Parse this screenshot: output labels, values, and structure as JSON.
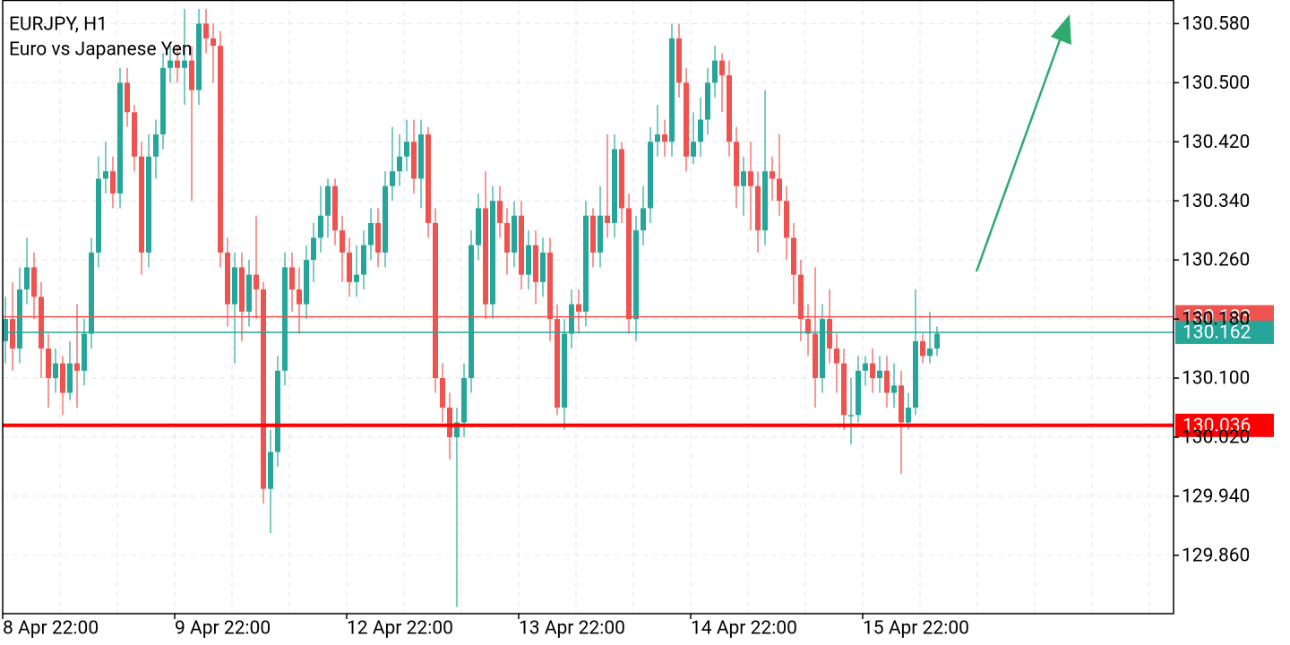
{
  "chart_data": {
    "type": "candlestick",
    "title": "EURJPY, H1",
    "subtitle": "Euro vs Japanese Yen",
    "up_color": "#26a69a",
    "down_color": "#ef5350",
    "grid": true,
    "ylim": [
      129.781,
      130.612
    ],
    "yticks": [
      {
        "value": 129.86,
        "label": "129.860"
      },
      {
        "value": 129.94,
        "label": "129.940"
      },
      {
        "value": 130.02,
        "label": "130.020"
      },
      {
        "value": 130.1,
        "label": "130.100"
      },
      {
        "value": 130.18,
        "label": "130.180"
      },
      {
        "value": 130.26,
        "label": "130.260"
      },
      {
        "value": 130.34,
        "label": "130.340"
      },
      {
        "value": 130.42,
        "label": "130.420"
      },
      {
        "value": 130.5,
        "label": "130.500"
      },
      {
        "value": 130.58,
        "label": "130.580"
      }
    ],
    "levels": [
      {
        "value": 130.183,
        "color": "#ef5350"
      },
      {
        "value": 130.162,
        "color": "#26a69a"
      },
      {
        "value": 130.036,
        "color": "#ff0000"
      }
    ],
    "arrow_color": "#2eaa6e",
    "categories": [
      "8 Apr 22:00",
      null,
      null,
      null,
      null,
      null,
      null,
      null,
      null,
      null,
      null,
      null,
      null,
      null,
      null,
      null,
      null,
      null,
      null,
      null,
      null,
      null,
      null,
      null,
      "9 Apr 22:00",
      null,
      null,
      null,
      null,
      null,
      null,
      null,
      null,
      null,
      null,
      null,
      null,
      null,
      null,
      null,
      null,
      null,
      null,
      null,
      null,
      null,
      null,
      null,
      "12 Apr 22:00",
      null,
      null,
      null,
      null,
      null,
      null,
      null,
      null,
      null,
      null,
      null,
      null,
      null,
      null,
      null,
      null,
      null,
      null,
      null,
      null,
      null,
      null,
      null,
      "13 Apr 22:00",
      null,
      null,
      null,
      null,
      null,
      null,
      null,
      null,
      null,
      null,
      null,
      null,
      null,
      null,
      null,
      null,
      null,
      null,
      null,
      null,
      null,
      null,
      null,
      "14 Apr 22:00",
      null,
      null,
      null,
      null,
      null,
      null,
      null,
      null,
      null,
      null,
      null,
      null,
      null,
      null,
      null,
      null,
      null,
      null,
      null,
      null,
      null,
      null,
      null,
      "15 Apr 22:00",
      null,
      null,
      null,
      null,
      null,
      null,
      null,
      null,
      null,
      null
    ],
    "open": [
      130.15,
      130.18,
      130.14,
      130.22,
      130.25,
      130.21,
      130.14,
      130.1,
      130.12,
      130.08,
      130.12,
      130.11,
      130.16,
      130.27,
      130.37,
      130.38,
      130.35,
      130.5,
      130.46,
      130.4,
      130.27,
      130.4,
      130.43,
      130.52,
      130.53,
      130.52,
      130.53,
      130.49,
      130.58,
      130.56,
      130.55,
      130.27,
      130.2,
      130.25,
      130.19,
      130.24,
      130.22,
      129.95,
      130.0,
      130.11,
      130.25,
      130.22,
      130.2,
      130.26,
      130.29,
      130.32,
      130.36,
      130.3,
      130.27,
      130.23,
      130.24,
      130.28,
      130.31,
      130.27,
      130.36,
      130.38,
      130.4,
      130.42,
      130.37,
      130.43,
      130.31,
      130.1,
      130.06,
      130.02,
      130.04,
      130.1,
      130.28,
      130.33,
      130.2,
      130.34,
      130.31,
      130.27,
      130.32,
      130.24,
      130.28,
      130.23,
      130.27,
      130.18,
      130.06,
      130.16,
      130.2,
      130.19,
      130.32,
      130.27,
      130.32,
      130.31,
      130.41,
      130.33,
      130.18,
      130.3,
      130.33,
      130.42,
      130.43,
      130.42,
      130.56,
      130.5,
      130.4,
      130.42,
      130.45,
      130.5,
      130.53,
      130.51,
      130.42,
      130.36,
      130.38,
      130.36,
      130.3,
      130.38,
      130.37,
      130.34,
      130.29,
      130.24,
      130.18,
      130.16,
      130.1,
      130.18,
      130.14,
      130.12,
      130.05,
      130.05,
      130.11,
      130.12,
      130.1,
      130.11,
      130.08,
      130.09,
      130.04,
      130.06,
      130.15,
      130.13,
      130.14
    ],
    "high": [
      130.21,
      130.23,
      130.25,
      130.29,
      130.27,
      130.23,
      130.16,
      130.14,
      130.13,
      130.15,
      130.2,
      130.18,
      130.29,
      130.4,
      130.42,
      130.4,
      130.52,
      130.52,
      130.47,
      130.42,
      130.43,
      130.45,
      130.54,
      130.55,
      130.55,
      130.6,
      130.55,
      130.6,
      130.6,
      130.58,
      130.57,
      130.29,
      130.27,
      130.27,
      130.26,
      130.32,
      130.23,
      130.03,
      130.13,
      130.27,
      130.27,
      130.25,
      130.28,
      130.31,
      130.36,
      130.37,
      130.37,
      130.32,
      130.29,
      130.28,
      130.3,
      130.33,
      130.33,
      130.38,
      130.44,
      130.43,
      130.45,
      130.45,
      130.45,
      130.44,
      130.33,
      130.12,
      130.08,
      130.06,
      130.12,
      130.3,
      130.35,
      130.38,
      130.36,
      130.36,
      130.33,
      130.34,
      130.34,
      130.3,
      130.3,
      130.29,
      130.29,
      130.2,
      130.18,
      130.22,
      130.22,
      130.34,
      130.33,
      130.36,
      130.43,
      130.43,
      130.42,
      130.35,
      130.32,
      130.36,
      130.44,
      130.47,
      130.45,
      130.58,
      130.58,
      130.52,
      130.46,
      130.48,
      130.52,
      130.55,
      130.54,
      130.53,
      130.44,
      130.4,
      130.42,
      130.38,
      130.49,
      130.4,
      130.43,
      130.36,
      130.31,
      130.26,
      130.2,
      130.25,
      130.2,
      130.22,
      130.16,
      130.14,
      130.1,
      130.13,
      130.13,
      130.14,
      130.13,
      130.13,
      130.12,
      130.11,
      130.08,
      130.22,
      130.16,
      130.19,
      130.17
    ],
    "low": [
      130.12,
      130.11,
      130.12,
      130.2,
      130.18,
      130.1,
      130.06,
      130.08,
      130.05,
      130.07,
      130.06,
      130.09,
      130.14,
      130.25,
      130.35,
      130.33,
      130.33,
      130.44,
      130.38,
      130.24,
      130.25,
      130.37,
      130.41,
      130.5,
      130.5,
      130.47,
      130.34,
      130.47,
      130.54,
      130.5,
      130.25,
      130.17,
      130.12,
      130.15,
      130.17,
      130.18,
      129.93,
      129.89,
      129.98,
      130.09,
      130.19,
      130.16,
      130.18,
      130.23,
      130.27,
      130.29,
      130.28,
      130.23,
      130.21,
      130.21,
      130.22,
      130.26,
      130.25,
      130.25,
      130.34,
      130.36,
      130.38,
      130.35,
      130.33,
      130.29,
      130.08,
      130.04,
      129.99,
      129.79,
      130.02,
      130.08,
      130.26,
      130.18,
      130.18,
      130.29,
      130.24,
      130.25,
      130.22,
      130.22,
      130.2,
      130.21,
      130.15,
      130.05,
      130.03,
      130.14,
      130.16,
      130.17,
      130.25,
      130.25,
      130.29,
      130.29,
      130.31,
      130.16,
      130.15,
      130.28,
      130.31,
      130.4,
      130.4,
      130.4,
      130.48,
      130.38,
      130.39,
      130.4,
      130.43,
      130.48,
      130.46,
      130.4,
      130.33,
      130.32,
      130.3,
      130.27,
      130.28,
      130.34,
      130.32,
      130.26,
      130.2,
      130.15,
      130.13,
      130.06,
      130.08,
      130.12,
      130.08,
      130.03,
      130.01,
      130.04,
      130.09,
      130.08,
      130.08,
      130.06,
      130.06,
      129.97,
      130.03,
      130.05,
      130.12,
      130.12,
      130.13
    ],
    "close": [
      130.18,
      130.14,
      130.22,
      130.25,
      130.21,
      130.14,
      130.1,
      130.12,
      130.08,
      130.12,
      130.11,
      130.16,
      130.27,
      130.37,
      130.38,
      130.35,
      130.5,
      130.46,
      130.4,
      130.27,
      130.4,
      130.43,
      130.52,
      130.53,
      130.52,
      130.53,
      130.49,
      130.58,
      130.56,
      130.55,
      130.27,
      130.2,
      130.25,
      130.19,
      130.24,
      130.22,
      129.95,
      130.0,
      130.11,
      130.25,
      130.22,
      130.2,
      130.26,
      130.29,
      130.32,
      130.36,
      130.3,
      130.27,
      130.23,
      130.24,
      130.28,
      130.31,
      130.27,
      130.36,
      130.38,
      130.4,
      130.42,
      130.37,
      130.43,
      130.31,
      130.1,
      130.06,
      130.02,
      130.04,
      130.1,
      130.28,
      130.33,
      130.2,
      130.34,
      130.31,
      130.27,
      130.32,
      130.24,
      130.28,
      130.23,
      130.27,
      130.18,
      130.06,
      130.16,
      130.2,
      130.19,
      130.32,
      130.27,
      130.32,
      130.31,
      130.41,
      130.33,
      130.18,
      130.3,
      130.33,
      130.42,
      130.43,
      130.42,
      130.56,
      130.5,
      130.4,
      130.42,
      130.45,
      130.5,
      130.53,
      130.51,
      130.42,
      130.36,
      130.38,
      130.36,
      130.3,
      130.38,
      130.37,
      130.34,
      130.29,
      130.24,
      130.18,
      130.16,
      130.1,
      130.18,
      130.14,
      130.12,
      130.05,
      130.05,
      130.11,
      130.12,
      130.1,
      130.11,
      130.08,
      130.09,
      130.04,
      130.06,
      130.15,
      130.13,
      130.14,
      130.16
    ]
  }
}
